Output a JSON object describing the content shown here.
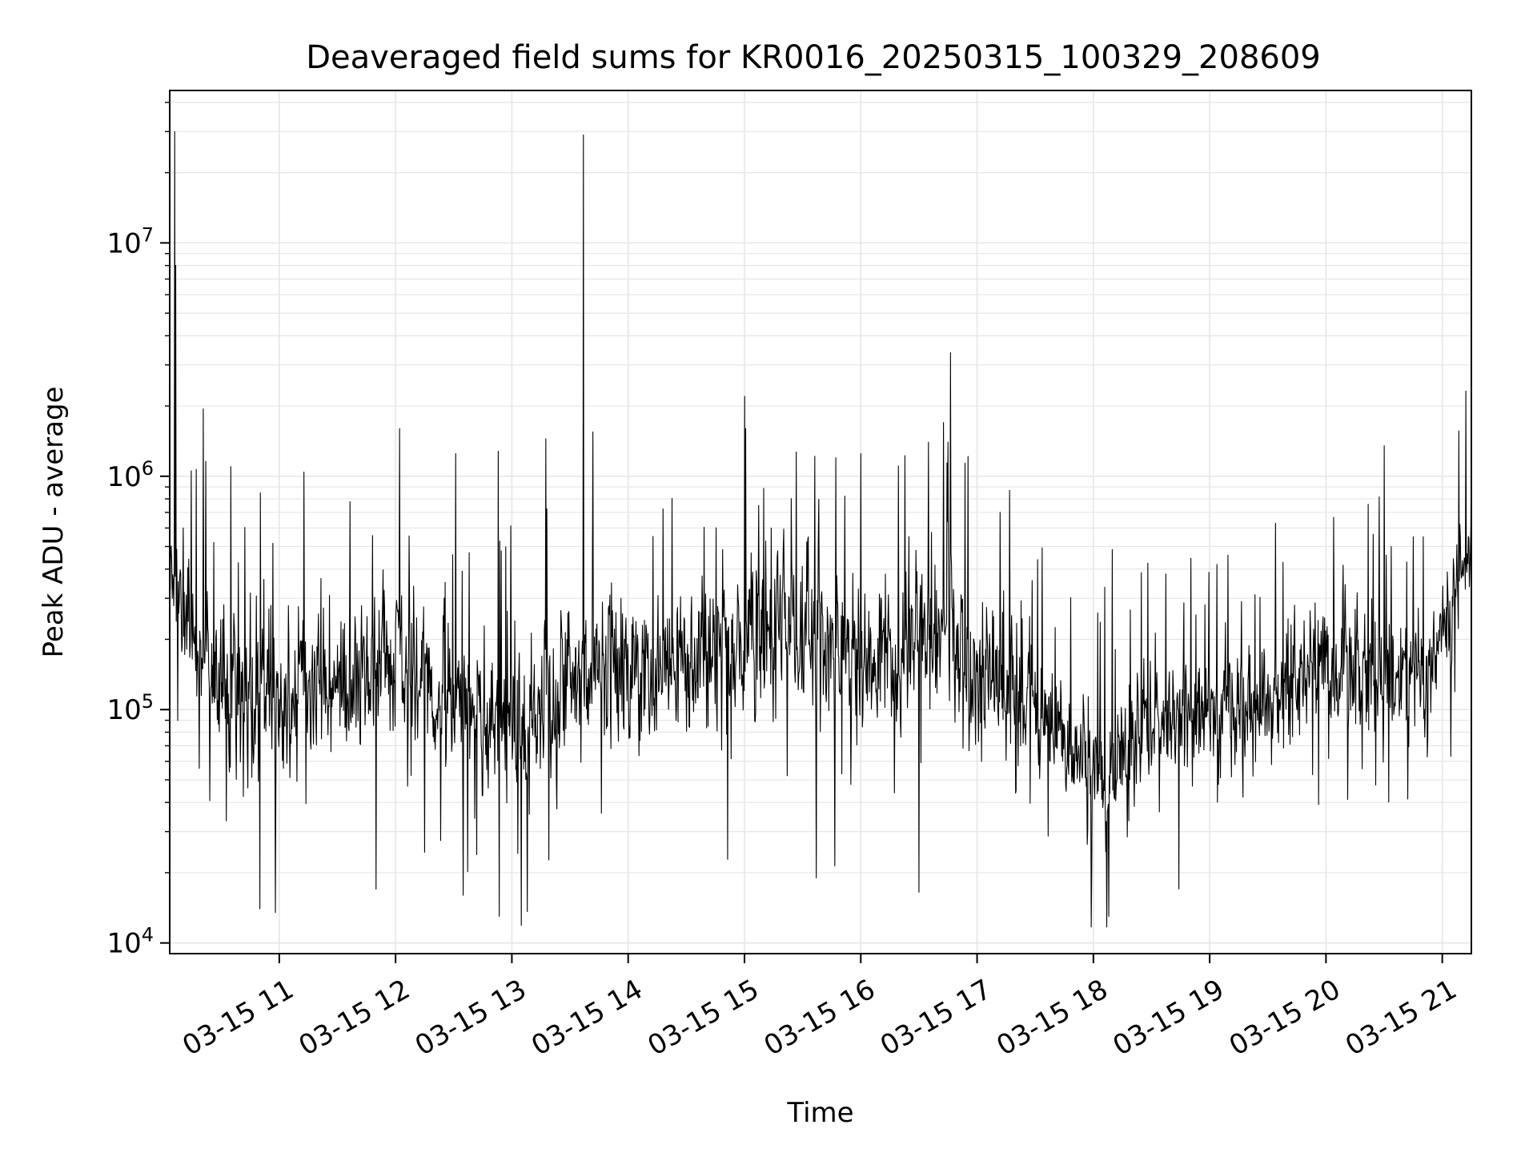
{
  "chart_data": {
    "type": "line",
    "title": "Deaveraged field sums for KR0016_20250315_100329_208609",
    "xlabel": "Time",
    "ylabel": "Peak ADU - average",
    "yscale": "log",
    "ylim": [
      9000,
      45000000
    ],
    "xlim": [
      "2025-03-15T10:03:29",
      "2025-03-15T21:15:00"
    ],
    "x_tick_labels": [
      "03-15 11",
      "03-15 12",
      "03-15 13",
      "03-15 14",
      "03-15 15",
      "03-15 16",
      "03-15 17",
      "03-15 18",
      "03-15 19",
      "03-15 20",
      "03-15 21"
    ],
    "x_tick_values": [
      "2025-03-15T11:00",
      "2025-03-15T12:00",
      "2025-03-15T13:00",
      "2025-03-15T14:00",
      "2025-03-15T15:00",
      "2025-03-15T16:00",
      "2025-03-15T17:00",
      "2025-03-15T18:00",
      "2025-03-15T19:00",
      "2025-03-15T20:00",
      "2025-03-15T21:00"
    ],
    "y_ticks": [
      {
        "value": 10000,
        "base": "10",
        "exp": "4"
      },
      {
        "value": 100000,
        "base": "10",
        "exp": "5"
      },
      {
        "value": 1000000,
        "base": "10",
        "exp": "6"
      },
      {
        "value": 10000000,
        "base": "10",
        "exp": "7"
      }
    ],
    "grid": "major and minor",
    "line_color": "#000000",
    "grid_color": "#e6e6e6",
    "trend": [
      {
        "t": "2025-03-15T10:03:29",
        "y": 400000,
        "spread": 0.18
      },
      {
        "t": "2025-03-15T10:12:00",
        "y": 230000,
        "spread": 0.22
      },
      {
        "t": "2025-03-15T10:40:00",
        "y": 110000,
        "spread": 0.28
      },
      {
        "t": "2025-03-15T11:30:00",
        "y": 120000,
        "spread": 0.26
      },
      {
        "t": "2025-03-15T12:00:00",
        "y": 180000,
        "spread": 0.26
      },
      {
        "t": "2025-03-15T12:30:00",
        "y": 110000,
        "spread": 0.26
      },
      {
        "t": "2025-03-15T13:00:00",
        "y": 90000,
        "spread": 0.27
      },
      {
        "t": "2025-03-15T13:30:00",
        "y": 130000,
        "spread": 0.27
      },
      {
        "t": "2025-03-15T14:30:00",
        "y": 160000,
        "spread": 0.28
      },
      {
        "t": "2025-03-15T15:15:00",
        "y": 250000,
        "spread": 0.34
      },
      {
        "t": "2025-03-15T16:00:00",
        "y": 160000,
        "spread": 0.32
      },
      {
        "t": "2025-03-15T16:40:00",
        "y": 200000,
        "spread": 0.32
      },
      {
        "t": "2025-03-15T17:30:00",
        "y": 100000,
        "spread": 0.28
      },
      {
        "t": "2025-03-15T18:05:00",
        "y": 45000,
        "spread": 0.24
      },
      {
        "t": "2025-03-15T18:30:00",
        "y": 90000,
        "spread": 0.24
      },
      {
        "t": "2025-03-15T19:30:00",
        "y": 110000,
        "spread": 0.24
      },
      {
        "t": "2025-03-15T20:15:00",
        "y": 170000,
        "spread": 0.24
      },
      {
        "t": "2025-03-15T20:50:00",
        "y": 130000,
        "spread": 0.24
      },
      {
        "t": "2025-03-15T21:15:00",
        "y": 550000,
        "spread": 0.2
      }
    ],
    "spikes": [
      {
        "t": "2025-03-15T10:06:00",
        "y": 30000000
      },
      {
        "t": "2025-03-15T10:06:30",
        "y": 8000000
      },
      {
        "t": "2025-03-15T13:37:00",
        "y": 29000000
      },
      {
        "t": "2025-03-15T15:00:00",
        "y": 2200000
      },
      {
        "t": "2025-03-15T12:02:00",
        "y": 1600000
      },
      {
        "t": "2025-03-15T15:00:30",
        "y": 1600000
      },
      {
        "t": "2025-03-15T21:15:00",
        "y": 1500000
      },
      {
        "t": "2025-03-15T16:35:00",
        "y": 1400000
      },
      {
        "t": "2025-03-15T16:45:00",
        "y": 1400000
      },
      {
        "t": "2025-03-15T20:30:00",
        "y": 1350000
      },
      {
        "t": "2025-03-15T12:31:00",
        "y": 1250000
      },
      {
        "t": "2025-03-15T12:53:00",
        "y": 1280000
      },
      {
        "t": "2025-03-15T16:00:00",
        "y": 1250000
      },
      {
        "t": "2025-03-15T10:35:00",
        "y": 1100000
      },
      {
        "t": "2025-03-15T15:47:00",
        "y": 1200000
      },
      {
        "t": "2025-03-15T10:50:00",
        "y": 14000
      },
      {
        "t": "2025-03-15T12:53:30",
        "y": 13000
      },
      {
        "t": "2025-03-15T18:08:00",
        "y": 13000
      },
      {
        "t": "2025-03-15T10:58:00",
        "y": 13500
      },
      {
        "t": "2025-03-15T11:50:00",
        "y": 17000
      },
      {
        "t": "2025-03-15T16:30:00",
        "y": 16500
      },
      {
        "t": "2025-03-15T12:35:00",
        "y": 16000
      },
      {
        "t": "2025-03-15T15:37:00",
        "y": 19000
      }
    ]
  }
}
